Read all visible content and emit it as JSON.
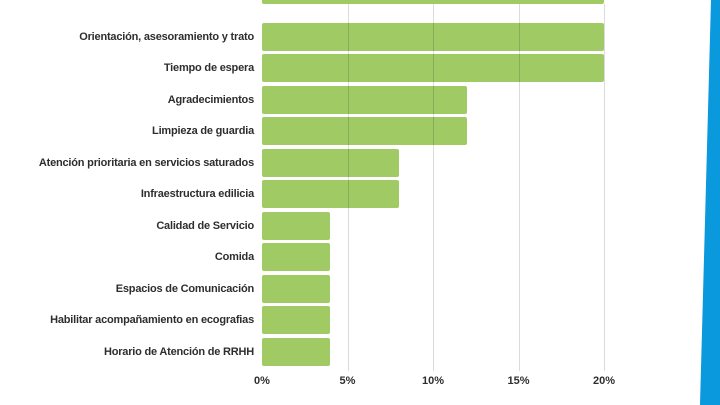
{
  "chart_data": {
    "type": "bar",
    "orientation": "horizontal",
    "title": "",
    "xlabel": "",
    "ylabel": "",
    "categories": [
      "Orientación, asesoramiento y trato",
      "Tiempo de espera",
      "Agradecimientos",
      "Limpieza de guardia",
      "Atención prioritaria en servicios saturados",
      "Infraestructura edilicia",
      "Calidad de Servicio",
      "Comida",
      "Espacios de Comunicación",
      "Habilitar acompañamiento en ecografias",
      "Horario de Atención de RRHH"
    ],
    "values": [
      20,
      20,
      12,
      12,
      8,
      8,
      4,
      4,
      4,
      4,
      4
    ],
    "unit": "%",
    "x_ticks": [
      "0%",
      "5%",
      "10%",
      "15%",
      "20%"
    ],
    "x_tick_values": [
      0,
      5,
      10,
      15,
      20
    ],
    "xlim": [
      0,
      25
    ],
    "grid": "vertical-only",
    "legend": "none",
    "cropped_partial_bar_top": {
      "visible": true,
      "value": 20
    },
    "colors": {
      "bar": "#A0CA64",
      "gridline": "#DBDBDB",
      "label_text": "#2E2E2E",
      "accent_stripe": "#0999DC",
      "background": "#FFFFFF"
    }
  }
}
